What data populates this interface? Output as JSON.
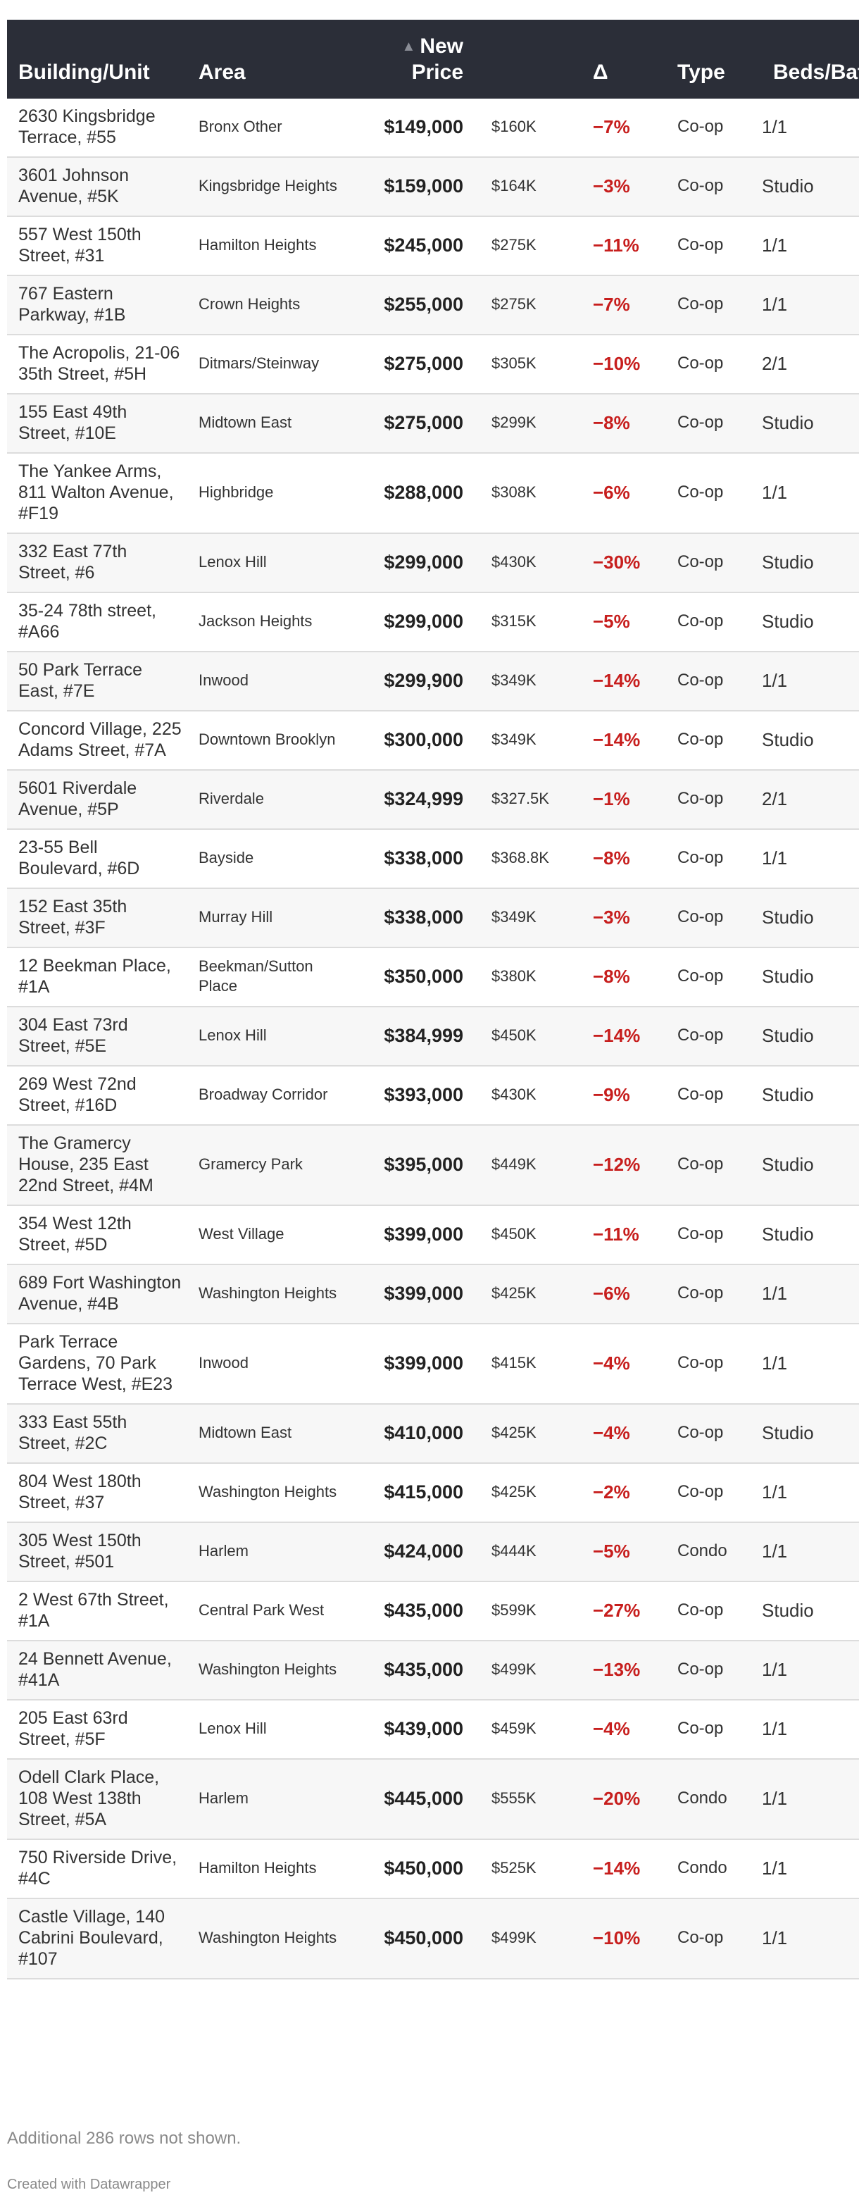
{
  "chart_data": {
    "type": "table",
    "columns": {
      "building": "Building/Unit",
      "area": "Area",
      "new_price_sort": "▲",
      "new_price": "New Price",
      "old_price": "",
      "delta": "Δ",
      "type": "Type",
      "beds": "Beds/Baths"
    },
    "rows": [
      {
        "building": "2630 Kingsbridge Terrace, #55",
        "area": "Bronx Other",
        "new_price": "$149,000",
        "old_price": "$160K",
        "delta": "−7%",
        "type": "Co-op",
        "beds": "1/1"
      },
      {
        "building": "3601 Johnson Avenue, #5K",
        "area": "Kingsbridge Heights",
        "new_price": "$159,000",
        "old_price": "$164K",
        "delta": "−3%",
        "type": "Co-op",
        "beds": "Studio"
      },
      {
        "building": "557 West 150th Street, #31",
        "area": "Hamilton Heights",
        "new_price": "$245,000",
        "old_price": "$275K",
        "delta": "−11%",
        "type": "Co-op",
        "beds": "1/1"
      },
      {
        "building": "767 Eastern Parkway, #1B",
        "area": "Crown Heights",
        "new_price": "$255,000",
        "old_price": "$275K",
        "delta": "−7%",
        "type": "Co-op",
        "beds": "1/1"
      },
      {
        "building": "The Acropolis, 21-06 35th Street, #5H",
        "area": "Ditmars/Steinway",
        "new_price": "$275,000",
        "old_price": "$305K",
        "delta": "−10%",
        "type": "Co-op",
        "beds": "2/1"
      },
      {
        "building": "155 East 49th Street, #10E",
        "area": "Midtown East",
        "new_price": "$275,000",
        "old_price": "$299K",
        "delta": "−8%",
        "type": "Co-op",
        "beds": "Studio"
      },
      {
        "building": "The Yankee Arms, 811 Walton Avenue, #F19",
        "area": "Highbridge",
        "new_price": "$288,000",
        "old_price": "$308K",
        "delta": "−6%",
        "type": "Co-op",
        "beds": "1/1"
      },
      {
        "building": "332 East 77th Street, #6",
        "area": "Lenox Hill",
        "new_price": "$299,000",
        "old_price": "$430K",
        "delta": "−30%",
        "type": "Co-op",
        "beds": "Studio"
      },
      {
        "building": "35-24 78th street, #A66",
        "area": "Jackson Heights",
        "new_price": "$299,000",
        "old_price": "$315K",
        "delta": "−5%",
        "type": "Co-op",
        "beds": "Studio"
      },
      {
        "building": "50 Park Terrace East, #7E",
        "area": "Inwood",
        "new_price": "$299,900",
        "old_price": "$349K",
        "delta": "−14%",
        "type": "Co-op",
        "beds": "1/1"
      },
      {
        "building": "Concord Village, 225 Adams Street, #7A",
        "area": "Downtown Brooklyn",
        "new_price": "$300,000",
        "old_price": "$349K",
        "delta": "−14%",
        "type": "Co-op",
        "beds": "Studio"
      },
      {
        "building": "5601 Riverdale Avenue, #5P",
        "area": "Riverdale",
        "new_price": "$324,999",
        "old_price": "$327.5K",
        "delta": "−1%",
        "type": "Co-op",
        "beds": "2/1"
      },
      {
        "building": "23-55 Bell Boulevard, #6D",
        "area": "Bayside",
        "new_price": "$338,000",
        "old_price": "$368.8K",
        "delta": "−8%",
        "type": "Co-op",
        "beds": "1/1"
      },
      {
        "building": "152 East 35th Street, #3F",
        "area": "Murray Hill",
        "new_price": "$338,000",
        "old_price": "$349K",
        "delta": "−3%",
        "type": "Co-op",
        "beds": "Studio"
      },
      {
        "building": "12 Beekman Place, #1A",
        "area": "Beekman/Sutton Place",
        "new_price": "$350,000",
        "old_price": "$380K",
        "delta": "−8%",
        "type": "Co-op",
        "beds": "Studio"
      },
      {
        "building": "304 East 73rd Street, #5E",
        "area": "Lenox Hill",
        "new_price": "$384,999",
        "old_price": "$450K",
        "delta": "−14%",
        "type": "Co-op",
        "beds": "Studio"
      },
      {
        "building": "269 West 72nd Street, #16D",
        "area": "Broadway Corridor",
        "new_price": "$393,000",
        "old_price": "$430K",
        "delta": "−9%",
        "type": "Co-op",
        "beds": "Studio"
      },
      {
        "building": "The Gramercy House, 235 East 22nd Street, #4M",
        "area": "Gramercy Park",
        "new_price": "$395,000",
        "old_price": "$449K",
        "delta": "−12%",
        "type": "Co-op",
        "beds": "Studio"
      },
      {
        "building": "354 West 12th Street, #5D",
        "area": "West Village",
        "new_price": "$399,000",
        "old_price": "$450K",
        "delta": "−11%",
        "type": "Co-op",
        "beds": "Studio"
      },
      {
        "building": "689 Fort Washington Avenue, #4B",
        "area": "Washington Heights",
        "new_price": "$399,000",
        "old_price": "$425K",
        "delta": "−6%",
        "type": "Co-op",
        "beds": "1/1"
      },
      {
        "building": "Park Terrace Gardens, 70 Park Terrace West, #E23",
        "area": "Inwood",
        "new_price": "$399,000",
        "old_price": "$415K",
        "delta": "−4%",
        "type": "Co-op",
        "beds": "1/1"
      },
      {
        "building": "333 East 55th Street, #2C",
        "area": "Midtown East",
        "new_price": "$410,000",
        "old_price": "$425K",
        "delta": "−4%",
        "type": "Co-op",
        "beds": "Studio"
      },
      {
        "building": "804 West 180th Street, #37",
        "area": "Washington Heights",
        "new_price": "$415,000",
        "old_price": "$425K",
        "delta": "−2%",
        "type": "Co-op",
        "beds": "1/1"
      },
      {
        "building": "305 West 150th Street, #501",
        "area": "Harlem",
        "new_price": "$424,000",
        "old_price": "$444K",
        "delta": "−5%",
        "type": "Condo",
        "beds": "1/1"
      },
      {
        "building": "2 West 67th Street, #1A",
        "area": "Central Park West",
        "new_price": "$435,000",
        "old_price": "$599K",
        "delta": "−27%",
        "type": "Co-op",
        "beds": "Studio"
      },
      {
        "building": "24 Bennett Avenue, #41A",
        "area": "Washington Heights",
        "new_price": "$435,000",
        "old_price": "$499K",
        "delta": "−13%",
        "type": "Co-op",
        "beds": "1/1"
      },
      {
        "building": "205 East 63rd Street, #5F",
        "area": "Lenox Hill",
        "new_price": "$439,000",
        "old_price": "$459K",
        "delta": "−4%",
        "type": "Co-op",
        "beds": "1/1"
      },
      {
        "building": "Odell Clark Place, 108 West 138th Street, #5A",
        "area": "Harlem",
        "new_price": "$445,000",
        "old_price": "$555K",
        "delta": "−20%",
        "type": "Condo",
        "beds": "1/1"
      },
      {
        "building": "750 Riverside Drive, #4C",
        "area": "Hamilton Heights",
        "new_price": "$450,000",
        "old_price": "$525K",
        "delta": "−14%",
        "type": "Condo",
        "beds": "1/1"
      },
      {
        "building": "Castle Village, 140 Cabrini Boulevard, #107",
        "area": "Washington Heights",
        "new_price": "$450,000",
        "old_price": "$499K",
        "delta": "−10%",
        "type": "Co-op",
        "beds": "1/1"
      }
    ],
    "notes": "Additional 286 rows not shown.",
    "credit": "Created with Datawrapper"
  },
  "colors": {
    "header_bg": "#2b2e38",
    "delta_red": "#c71e1d",
    "stripe": "#f7f7f7"
  }
}
